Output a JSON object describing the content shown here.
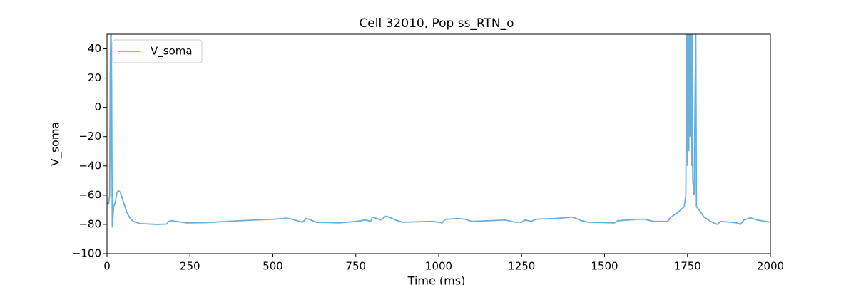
{
  "chart_data": {
    "type": "line",
    "title": "Cell 32010, Pop ss_RTN_o",
    "xlabel": "Time (ms)",
    "ylabel": "V_soma",
    "xlim": [
      0,
      2000
    ],
    "ylim": [
      -100,
      50
    ],
    "xticks": [
      0,
      250,
      500,
      750,
      1000,
      1250,
      1500,
      1750,
      2000
    ],
    "yticks": [
      {
        "value": -100,
        "label": "−100"
      },
      {
        "value": -80,
        "label": "−80"
      },
      {
        "value": -60,
        "label": "−60"
      },
      {
        "value": -40,
        "label": "−40"
      },
      {
        "value": -20,
        "label": "−20"
      },
      0,
      20,
      40
    ],
    "legend": "upper left",
    "x": [
      0,
      5,
      8,
      10,
      12,
      14,
      15,
      16,
      18,
      20,
      25,
      30,
      35,
      40,
      50,
      60,
      70,
      80,
      100,
      150,
      180,
      185,
      195,
      210,
      240,
      300,
      400,
      420,
      500,
      540,
      560,
      580,
      590,
      600,
      610,
      630,
      700,
      750,
      780,
      795,
      800,
      815,
      825,
      840,
      850,
      870,
      890,
      980,
      1000,
      1010,
      1020,
      1060,
      1080,
      1100,
      1200,
      1230,
      1250,
      1260,
      1280,
      1290,
      1350,
      1400,
      1410,
      1430,
      1450,
      1530,
      1540,
      1600,
      1620,
      1650,
      1690,
      1700,
      1720,
      1740,
      1745,
      1748,
      1750,
      1752,
      1754,
      1756,
      1758,
      1760,
      1762,
      1764,
      1766,
      1770,
      1775,
      1777,
      1785,
      1800,
      1820,
      1840,
      1850,
      1880,
      1900,
      1910,
      1920,
      1940,
      1960,
      2000
    ],
    "series": [
      {
        "name": "V_soma",
        "color": "#6baed6",
        "values": [
          -65,
          -66,
          -60,
          30,
          60,
          20,
          -40,
          -82,
          -75,
          -68,
          -65,
          -58,
          -57,
          -58,
          -65,
          -72,
          -76,
          -78,
          -79.5,
          -80,
          -79.8,
          -78,
          -77.5,
          -78,
          -79,
          -78.8,
          -77.5,
          -77.3,
          -76.5,
          -75.8,
          -76.5,
          -78,
          -78.5,
          -76,
          -76.5,
          -78.5,
          -79,
          -78,
          -77,
          -78,
          -75,
          -76,
          -77,
          -74.5,
          -75,
          -77,
          -78.5,
          -78,
          -78.5,
          -79,
          -76.5,
          -76,
          -76.5,
          -78,
          -77,
          -78.5,
          -78.5,
          -77,
          -78,
          -76.5,
          -76,
          -75,
          -75.5,
          -77.5,
          -78.5,
          -79,
          -77.5,
          -76.5,
          -76.5,
          -78,
          -78,
          -75,
          -72,
          -68,
          -60,
          55,
          -40,
          55,
          -30,
          55,
          -20,
          55,
          -40,
          55,
          -50,
          -60,
          55,
          -68,
          -70,
          -75,
          -78,
          -80,
          -78,
          -78.5,
          -79,
          -80,
          -77,
          -75.5,
          -77,
          -78.5
        ]
      }
    ]
  }
}
